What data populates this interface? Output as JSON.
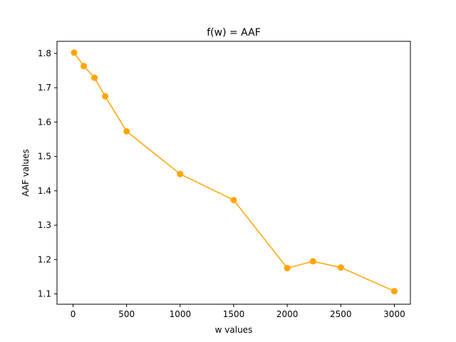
{
  "chart_data": {
    "type": "line",
    "title": "f(w) = AAF",
    "xlabel": "w values",
    "ylabel": "AAF values",
    "xlim": [
      -150,
      3150
    ],
    "ylim": [
      1.07,
      1.835
    ],
    "xticks": [
      0,
      500,
      1000,
      1500,
      2000,
      2500,
      3000
    ],
    "yticks": [
      1.1,
      1.2,
      1.3,
      1.4,
      1.5,
      1.6,
      1.7,
      1.8
    ],
    "grid": false,
    "color": "#FFA500",
    "series": [
      {
        "x": [
          10,
          100,
          200,
          300,
          500,
          1000,
          1500,
          2000,
          2240,
          2500,
          3000
        ],
        "y": [
          1.802,
          1.763,
          1.729,
          1.675,
          1.573,
          1.449,
          1.373,
          1.175,
          1.195,
          1.177,
          1.108
        ]
      }
    ]
  }
}
